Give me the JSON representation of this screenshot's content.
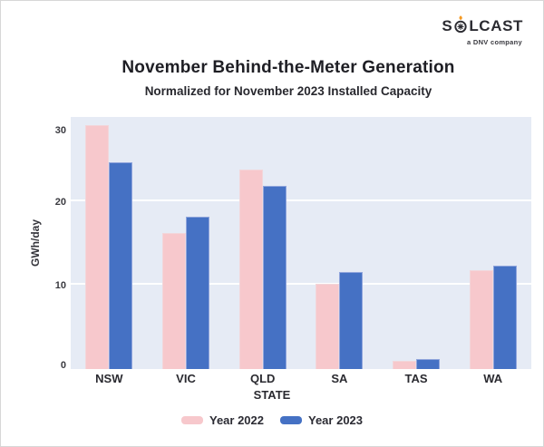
{
  "logo": {
    "brand_prefix": "S",
    "brand_suffix": "LCAST",
    "tagline": "a DNV company",
    "flame_color": "#F59A23",
    "ink_color": "#2B2B31"
  },
  "chart_data": {
    "type": "bar",
    "title": "November Behind-the-Meter Generation",
    "subtitle": "Normalized for November 2023 Installed Capacity",
    "categories": [
      "NSW",
      "VIC",
      "QLD",
      "SA",
      "TAS",
      "WA"
    ],
    "series": [
      {
        "name": "Year 2022",
        "color": "#F7C8CC",
        "border": "#F2D6DA",
        "values": [
          29.0,
          16.2,
          23.7,
          10.1,
          1.0,
          11.8
        ]
      },
      {
        "name": "Year 2023",
        "color": "#4571C4",
        "border": "#90A5DC",
        "values": [
          24.6,
          18.1,
          21.8,
          11.5,
          1.2,
          12.3
        ]
      }
    ],
    "xlabel": "STATE",
    "ylabel": "GWh/day",
    "ylim": [
      0,
      30
    ],
    "yticks": [
      0,
      10,
      20,
      30
    ],
    "grid": true,
    "gridline_color": "#FFFFFF",
    "plot_bg": "#E6EBF5",
    "legend_position": "bottom"
  }
}
